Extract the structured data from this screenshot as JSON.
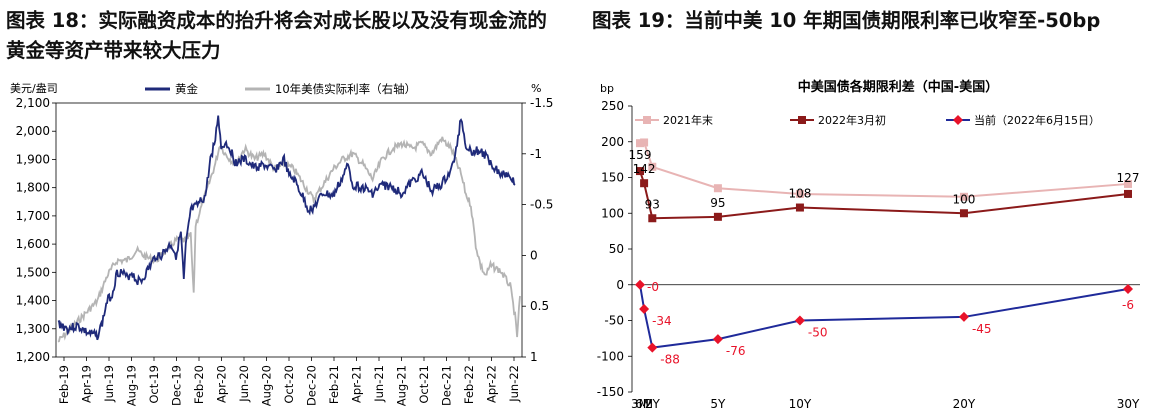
{
  "left": {
    "figure_title": "图表 18：实际融资成本的抬升将会对成长股以及没有现金流的黄金等资产带来较大压力"
  },
  "right": {
    "figure_title": "图表 19：当前中美 10 年期国债期限利率已收窄至-50bp"
  },
  "chart_data": [
    {
      "type": "line",
      "title": "",
      "y_left_unit": "美元/盎司",
      "y_right_unit": "%",
      "ylim_left": [
        1200,
        2100
      ],
      "ylim_right": [
        1,
        -1.5
      ],
      "right_axis_inverted": true,
      "y_left_ticks": [
        "1,200",
        "1,300",
        "1,400",
        "1,500",
        "1,600",
        "1,700",
        "1,800",
        "1,900",
        "2,000",
        "2,100"
      ],
      "y_right_ticks": [
        "1",
        "0.5",
        "0",
        "-0.5",
        "-1",
        "-1.5"
      ],
      "x_ticks": [
        "Feb-19",
        "Apr-19",
        "Jun-19",
        "Aug-19",
        "Oct-19",
        "Dec-19",
        "Feb-20",
        "Apr-20",
        "Jun-20",
        "Aug-20",
        "Oct-20",
        "Dec-20",
        "Feb-21",
        "Apr-21",
        "Jun-21",
        "Aug-21",
        "Oct-21",
        "Dec-21",
        "Feb-22",
        "Apr-22",
        "Jun-22"
      ],
      "legend_position": "top",
      "colors": {
        "gold": "#1f2a7a",
        "real_rate": "#b4b4b4"
      },
      "series": [
        {
          "name": "黄金",
          "axis": "left",
          "points": [
            [
              0,
              1320
            ],
            [
              1,
              1300
            ],
            [
              2,
              1310
            ],
            [
              3,
              1285
            ],
            [
              4,
              1275
            ],
            [
              4.5,
              1320
            ],
            [
              5,
              1400
            ],
            [
              5.5,
              1420
            ],
            [
              6,
              1500
            ],
            [
              6.5,
              1500
            ],
            [
              7,
              1480
            ],
            [
              7.5,
              1500
            ],
            [
              8,
              1470
            ],
            [
              8.5,
              1470
            ],
            [
              9,
              1500
            ],
            [
              9.5,
              1530
            ],
            [
              10,
              1560
            ],
            [
              10.5,
              1560
            ],
            [
              11,
              1580
            ],
            [
              11.5,
              1600
            ],
            [
              12,
              1560
            ],
            [
              12.5,
              1640
            ],
            [
              12.8,
              1470
            ],
            [
              13,
              1590
            ],
            [
              13.5,
              1720
            ],
            [
              14,
              1730
            ],
            [
              15,
              1770
            ],
            [
              15.5,
              1900
            ],
            [
              16,
              1970
            ],
            [
              16.3,
              2060
            ],
            [
              16.6,
              1940
            ],
            [
              17,
              1960
            ],
            [
              17.5,
              1940
            ],
            [
              18,
              1890
            ],
            [
              19,
              1900
            ],
            [
              20,
              1870
            ],
            [
              21,
              1880
            ],
            [
              22,
              1860
            ],
            [
              23,
              1900
            ],
            [
              23.5,
              1840
            ],
            [
              24,
              1830
            ],
            [
              25,
              1760
            ],
            [
              25.5,
              1720
            ],
            [
              26,
              1730
            ],
            [
              27,
              1780
            ],
            [
              28,
              1770
            ],
            [
              29,
              1840
            ],
            [
              29.5,
              1880
            ],
            [
              30,
              1810
            ],
            [
              31,
              1800
            ],
            [
              32,
              1780
            ],
            [
              33,
              1810
            ],
            [
              34,
              1800
            ],
            [
              35,
              1780
            ],
            [
              36,
              1820
            ],
            [
              37,
              1850
            ],
            [
              38,
              1790
            ],
            [
              39,
              1810
            ],
            [
              40,
              1860
            ],
            [
              40.5,
              1930
            ],
            [
              41,
              2050
            ],
            [
              41.5,
              1950
            ],
            [
              42,
              1930
            ],
            [
              43,
              1930
            ],
            [
              44,
              1890
            ],
            [
              45,
              1850
            ],
            [
              46,
              1850
            ],
            [
              46.5,
              1810
            ]
          ]
        },
        {
          "name": "10年美债实际利率（右轴）",
          "axis": "right",
          "points": [
            [
              0,
              0.85
            ],
            [
              1,
              0.75
            ],
            [
              2,
              0.65
            ],
            [
              3,
              0.55
            ],
            [
              4,
              0.45
            ],
            [
              5,
              0.2
            ],
            [
              6,
              0.05
            ],
            [
              7,
              0.05
            ],
            [
              8,
              -0.05
            ],
            [
              9,
              0.02
            ],
            [
              10,
              0.05
            ],
            [
              11,
              -0.05
            ],
            [
              12,
              -0.15
            ],
            [
              13,
              -0.15
            ],
            [
              13.5,
              -0.2
            ],
            [
              13.8,
              0.4
            ],
            [
              14,
              -0.3
            ],
            [
              15,
              -0.6
            ],
            [
              16,
              -0.9
            ],
            [
              16.5,
              -1.1
            ],
            [
              17,
              -1.0
            ],
            [
              18,
              -0.9
            ],
            [
              19,
              -1.05
            ],
            [
              20,
              -0.95
            ],
            [
              21,
              -1.0
            ],
            [
              22,
              -0.85
            ],
            [
              23,
              -0.9
            ],
            [
              24,
              -0.85
            ],
            [
              25,
              -0.7
            ],
            [
              26,
              -0.55
            ],
            [
              27,
              -0.7
            ],
            [
              28,
              -0.85
            ],
            [
              29,
              -0.95
            ],
            [
              30,
              -1.0
            ],
            [
              31,
              -0.9
            ],
            [
              32,
              -0.75
            ],
            [
              33,
              -0.95
            ],
            [
              34,
              -1.05
            ],
            [
              35,
              -1.1
            ],
            [
              36,
              -1.05
            ],
            [
              37,
              -1.1
            ],
            [
              38,
              -1.0
            ],
            [
              39,
              -1.15
            ],
            [
              40,
              -1.05
            ],
            [
              41,
              -0.8
            ],
            [
              41.5,
              -0.6
            ],
            [
              42,
              -0.5
            ],
            [
              42.5,
              -0.1
            ],
            [
              43,
              0.1
            ],
            [
              43.5,
              0.2
            ],
            [
              44,
              0.1
            ],
            [
              45,
              0.15
            ],
            [
              46,
              0.3
            ],
            [
              46.5,
              0.6
            ],
            [
              46.7,
              0.8
            ],
            [
              47,
              0.4
            ]
          ]
        }
      ]
    },
    {
      "type": "line",
      "title": "中美国债各期限利差（中国-美国）",
      "y_unit": "bp",
      "ylim": [
        -150,
        250
      ],
      "y_ticks": [
        -150,
        -100,
        -50,
        0,
        50,
        100,
        150,
        200,
        250
      ],
      "categories": [
        "3M",
        "6M",
        "2Y",
        "5Y",
        "10Y",
        "20Y",
        "30Y"
      ],
      "x_positions": [
        0.25,
        0.5,
        1,
        5,
        10,
        20,
        30
      ],
      "legend_position": "top-left",
      "series": [
        {
          "name": "2021年末",
          "color": "#e8b4b4",
          "marker": "square",
          "values": [
            198,
            199,
            165,
            135,
            127,
            123,
            141
          ]
        },
        {
          "name": "2022年3月初",
          "color": "#8b1a1a",
          "marker": "square",
          "values": [
            159,
            142,
            93,
            95,
            108,
            100,
            127
          ],
          "labels": [
            "159",
            "142",
            "93",
            "95",
            "108",
            "100",
            "127"
          ]
        },
        {
          "name": "当前（2022年6月15日）",
          "color": "#1f2a9a",
          "marker": "diamond",
          "marker_color": "#e8132a",
          "label_color": "#e8132a",
          "values": [
            0,
            -34,
            -88,
            -76,
            -50,
            -45,
            -6
          ],
          "labels": [
            "-0",
            "-34",
            "-88",
            "-76",
            "-50",
            "-45",
            "-6"
          ]
        }
      ]
    }
  ]
}
